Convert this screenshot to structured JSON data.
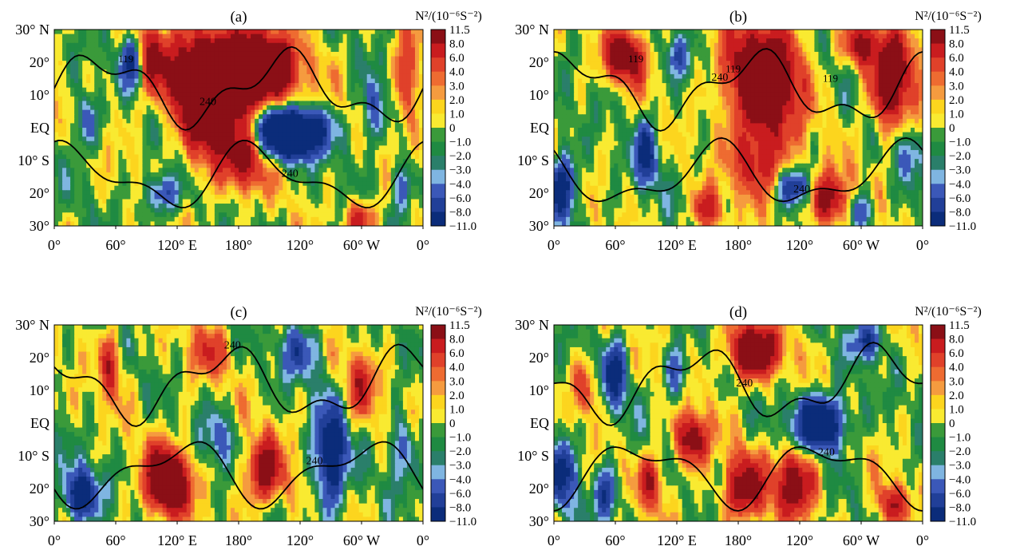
{
  "chart_data": [
    {
      "type": "heatmap",
      "panel_label": "(a)",
      "colorbar_title": "N²/(10⁻⁶S⁻²)",
      "contour_label": "240",
      "x_tick_labels": [
        "0°",
        "60°",
        "120° E",
        "180°",
        "120°",
        "60° W",
        "0°"
      ],
      "y_tick_labels": [
        "30° N",
        "20°",
        "10°",
        "EQ",
        "10° S",
        "20°",
        "30°"
      ],
      "xlim": [
        0,
        360
      ],
      "ylim": [
        -30,
        30
      ],
      "extra_contour_labels": [
        "119"
      ],
      "hotspots": [
        [
          165,
          17,
          2.6,
          55,
          14
        ],
        [
          210,
          18,
          1.6,
          25,
          8
        ],
        [
          185,
          -10,
          1.4,
          20,
          10
        ],
        [
          150,
          2,
          1.5,
          25,
          15
        ],
        [
          95,
          22,
          1.1,
          10,
          10
        ],
        [
          300,
          -28,
          1.2,
          15,
          6
        ],
        [
          345,
          15,
          1.2,
          10,
          15
        ]
      ],
      "coldspots": [
        [
          230,
          0,
          2.6,
          35,
          6
        ],
        [
          230,
          -6,
          1.2,
          30,
          5
        ],
        [
          75,
          20,
          1.3,
          12,
          8
        ],
        [
          105,
          -20,
          1.3,
          15,
          6
        ],
        [
          30,
          2,
          1.1,
          10,
          8
        ],
        [
          310,
          5,
          1.0,
          10,
          10
        ],
        [
          340,
          -18,
          1.0,
          10,
          8
        ]
      ]
    },
    {
      "type": "heatmap",
      "panel_label": "(b)",
      "colorbar_title": "N²/(10⁻⁶S⁻²)",
      "contour_label": "240",
      "x_tick_labels": [
        "0°",
        "60°",
        "120° E",
        "180°",
        "120°",
        "60° W",
        "0°"
      ],
      "y_tick_labels": [
        "30° N",
        "20°",
        "10°",
        "EQ",
        "10° S",
        "20°",
        "30°"
      ],
      "xlim": [
        0,
        360
      ],
      "ylim": [
        -30,
        30
      ],
      "extra_contour_labels": [
        "119",
        "119",
        "119"
      ],
      "hotspots": [
        [
          205,
          15,
          2.6,
          35,
          16
        ],
        [
          70,
          22,
          1.8,
          20,
          8
        ],
        [
          330,
          15,
          2.0,
          20,
          15
        ],
        [
          300,
          25,
          1.4,
          15,
          6
        ],
        [
          270,
          -22,
          1.6,
          20,
          8
        ],
        [
          150,
          -25,
          1.2,
          15,
          6
        ],
        [
          200,
          -10,
          1.3,
          25,
          10
        ]
      ],
      "coldspots": [
        [
          10,
          -18,
          1.8,
          12,
          10
        ],
        [
          90,
          -8,
          1.4,
          12,
          10
        ],
        [
          235,
          -18,
          1.3,
          15,
          5
        ],
        [
          300,
          -25,
          1.2,
          12,
          6
        ],
        [
          120,
          22,
          1.0,
          10,
          6
        ],
        [
          345,
          -8,
          1.0,
          10,
          8
        ]
      ]
    },
    {
      "type": "heatmap",
      "panel_label": "(c)",
      "colorbar_title": "N²/(10⁻⁶S⁻²)",
      "contour_label": "240",
      "x_tick_labels": [
        "0°",
        "60°",
        "120° E",
        "180°",
        "120°",
        "60° W",
        "0°"
      ],
      "y_tick_labels": [
        "30° N",
        "20°",
        "10°",
        "EQ",
        "10° S",
        "20°",
        "30°"
      ],
      "xlim": [
        0,
        360
      ],
      "ylim": [
        -30,
        30
      ],
      "extra_contour_labels": [],
      "hotspots": [
        [
          110,
          -18,
          2.4,
          22,
          10
        ],
        [
          205,
          -15,
          1.6,
          20,
          10
        ],
        [
          55,
          18,
          1.2,
          10,
          10
        ],
        [
          300,
          12,
          1.0,
          15,
          10
        ],
        [
          150,
          22,
          0.8,
          20,
          8
        ]
      ],
      "coldspots": [
        [
          270,
          -10,
          2.0,
          15,
          15
        ],
        [
          25,
          -22,
          1.8,
          18,
          8
        ],
        [
          240,
          22,
          1.0,
          20,
          8
        ],
        [
          340,
          -8,
          1.0,
          10,
          10
        ],
        [
          160,
          -5,
          0.8,
          15,
          8
        ]
      ]
    },
    {
      "type": "heatmap",
      "panel_label": "(d)",
      "colorbar_title": "N²/(10⁻⁶S⁻²)",
      "contour_label": "240",
      "x_tick_labels": [
        "0°",
        "60°",
        "120° E",
        "180°",
        "120°",
        "60° W",
        "0°"
      ],
      "y_tick_labels": [
        "30° N",
        "20°",
        "10°",
        "EQ",
        "10° S",
        "20°",
        "30°"
      ],
      "xlim": [
        0,
        360
      ],
      "ylim": [
        -30,
        30
      ],
      "extra_contour_labels": [],
      "hotspots": [
        [
          195,
          22,
          2.2,
          25,
          8
        ],
        [
          235,
          -18,
          1.8,
          20,
          10
        ],
        [
          185,
          -20,
          1.6,
          20,
          10
        ],
        [
          135,
          -5,
          1.8,
          15,
          8
        ],
        [
          330,
          -25,
          1.3,
          15,
          6
        ],
        [
          30,
          10,
          1.0,
          10,
          8
        ],
        [
          95,
          -18,
          1.2,
          12,
          8
        ]
      ],
      "coldspots": [
        [
          260,
          0,
          2.4,
          25,
          8
        ],
        [
          10,
          -15,
          1.6,
          12,
          10
        ],
        [
          60,
          15,
          1.5,
          12,
          10
        ],
        [
          305,
          25,
          1.2,
          15,
          6
        ],
        [
          50,
          -22,
          1.2,
          12,
          8
        ],
        [
          120,
          15,
          1.0,
          10,
          8
        ]
      ]
    }
  ],
  "colorbar": {
    "tick_labels": [
      "11.5",
      "8.0",
      "6.0",
      "4.0",
      "3.0",
      "2.0",
      "1.0",
      "0",
      "−1.0",
      "−2.0",
      "−3.0",
      "−4.0",
      "−6.0",
      "−8.0",
      "−11.0"
    ],
    "levels": [
      11.5,
      8.0,
      6.0,
      4.0,
      3.0,
      2.0,
      1.0,
      0,
      -1.0,
      -2.0,
      -3.0,
      -4.0,
      -6.0,
      -8.0,
      -11.0
    ],
    "colors": [
      "#8b0f16",
      "#c91c1f",
      "#e0412a",
      "#ee6b31",
      "#f59b3f",
      "#fcd51e",
      "#f9ea31",
      "#3a9a3a",
      "#1f8a42",
      "#2a7f6a",
      "#7fb5e1",
      "#3b58b8",
      "#213f98",
      "#0b2c7a"
    ]
  }
}
